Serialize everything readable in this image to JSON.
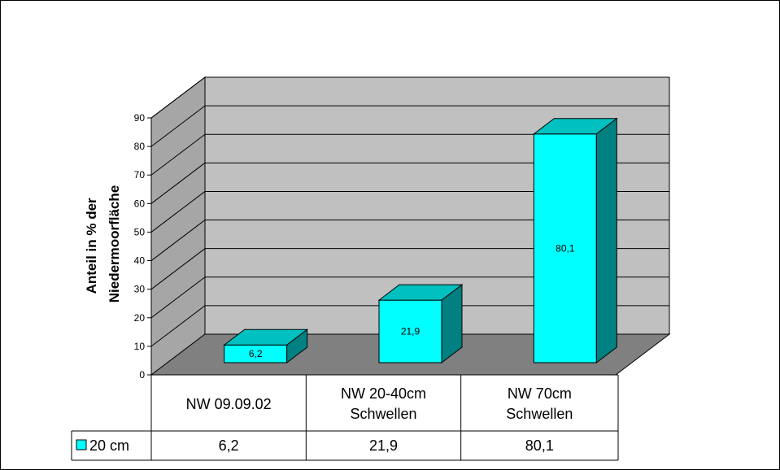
{
  "chart_data": {
    "type": "bar",
    "categories": [
      "NW 09.09.02",
      "NW 20-40cm Schwellen",
      "NW 70cm Schwellen"
    ],
    "category_lines": [
      [
        "NW 09.09.02"
      ],
      [
        "NW 20-40cm",
        "Schwellen"
      ],
      [
        "NW 70cm",
        "Schwellen"
      ]
    ],
    "series": [
      {
        "name": "20 cm",
        "values": [
          6.2,
          21.9,
          80.1
        ],
        "labels": [
          "6,2",
          "21,9",
          "80,1"
        ],
        "color": "#00ffff"
      }
    ],
    "ylabel_lines": [
      "Anteil in % der",
      "Niedermoorfläche"
    ],
    "ylim": [
      0,
      90
    ],
    "yticks": [
      "0",
      "10",
      "20",
      "30",
      "40",
      "50",
      "60",
      "70",
      "80",
      "90"
    ],
    "grid": true,
    "data_table": true,
    "colors": {
      "bar_front": "#00ffff",
      "bar_top": "#00c0c0",
      "bar_side": "#008080",
      "back_wall": "#c0c0c0",
      "side_wall": "#a6a6a6",
      "floor": "#808080"
    }
  }
}
